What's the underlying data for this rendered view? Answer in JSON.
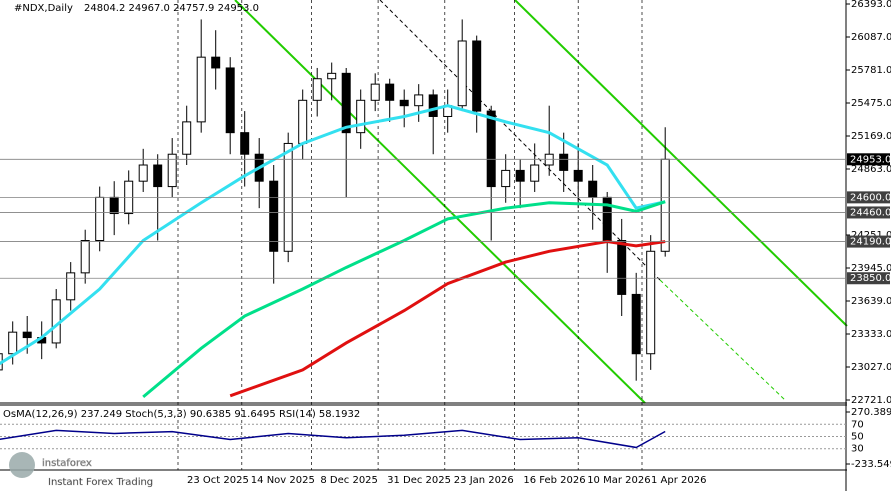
{
  "header": {
    "symbol": "#NDX,Daily",
    "ohlc": "24804.2 24967.0 24757.9 24953.0"
  },
  "watermark": {
    "brand": "instaforex",
    "tagline": "Instant Forex Trading"
  },
  "chart_data": {
    "type": "candlestick",
    "x": [
      "2025-08-22",
      "2025-08-27",
      "2025-09-01",
      "2025-09-06",
      "2025-09-11",
      "2025-09-16",
      "2025-09-21",
      "2025-09-26",
      "2025-10-01",
      "2025-10-06",
      "2025-10-11",
      "2025-10-16",
      "2025-10-21",
      "2025-10-26",
      "2025-10-31",
      "2025-11-05",
      "2025-11-10",
      "2025-11-15",
      "2025-11-20",
      "2025-11-25",
      "2025-11-30",
      "2025-12-05",
      "2025-12-10",
      "2025-12-15",
      "2025-12-20",
      "2025-12-25",
      "2025-12-30",
      "2026-01-04",
      "2026-01-09",
      "2026-01-14",
      "2026-01-19",
      "2026-01-24",
      "2026-01-29",
      "2026-02-03",
      "2026-02-08",
      "2026-02-13",
      "2026-02-18",
      "2026-02-23",
      "2026-02-28",
      "2026-03-05",
      "2026-03-10",
      "2026-03-15",
      "2026-03-20",
      "2026-03-25",
      "2026-03-30",
      "2026-04-04",
      "2026-04-09"
    ],
    "ohlc": [
      [
        23000,
        23250,
        22900,
        23150
      ],
      [
        23150,
        23450,
        23050,
        23350
      ],
      [
        23350,
        23500,
        23150,
        23300
      ],
      [
        23300,
        23450,
        23100,
        23250
      ],
      [
        23250,
        23750,
        23200,
        23650
      ],
      [
        23650,
        24000,
        23550,
        23900
      ],
      [
        23900,
        24300,
        23800,
        24200
      ],
      [
        24200,
        24700,
        24100,
        24600
      ],
      [
        24600,
        24750,
        24250,
        24450
      ],
      [
        24450,
        24850,
        24350,
        24750
      ],
      [
        24750,
        25050,
        24650,
        24900
      ],
      [
        24900,
        25000,
        24200,
        24700
      ],
      [
        24700,
        25150,
        24600,
        25000
      ],
      [
        25000,
        25450,
        24900,
        25300
      ],
      [
        25300,
        26250,
        25200,
        25900
      ],
      [
        25900,
        26150,
        25600,
        25800
      ],
      [
        25800,
        25900,
        25000,
        25200
      ],
      [
        25200,
        25400,
        24700,
        25000
      ],
      [
        25000,
        25150,
        24500,
        24750
      ],
      [
        24750,
        24900,
        23800,
        24100
      ],
      [
        24100,
        25200,
        24000,
        25100
      ],
      [
        25100,
        25600,
        24950,
        25500
      ],
      [
        25500,
        25800,
        25350,
        25700
      ],
      [
        25700,
        25850,
        25500,
        25750
      ],
      [
        25750,
        25800,
        24600,
        25200
      ],
      [
        25200,
        25600,
        25050,
        25500
      ],
      [
        25500,
        25750,
        25400,
        25650
      ],
      [
        25650,
        25700,
        25300,
        25500
      ],
      [
        25500,
        25600,
        25250,
        25450
      ],
      [
        25450,
        25650,
        25300,
        25550
      ],
      [
        25550,
        25600,
        25000,
        25350
      ],
      [
        25350,
        25600,
        25200,
        25450
      ],
      [
        25450,
        26250,
        25400,
        26050
      ],
      [
        26050,
        26100,
        25200,
        25400
      ],
      [
        25400,
        25450,
        24200,
        24700
      ],
      [
        24700,
        25000,
        24550,
        24850
      ],
      [
        24850,
        24950,
        24500,
        24750
      ],
      [
        24750,
        25100,
        24650,
        24900
      ],
      [
        24900,
        25450,
        24800,
        25000
      ],
      [
        25000,
        25200,
        24650,
        24850
      ],
      [
        24850,
        25100,
        24500,
        24750
      ],
      [
        24750,
        24900,
        24300,
        24600
      ],
      [
        24600,
        24650,
        23900,
        24200
      ],
      [
        24200,
        24400,
        23500,
        23700
      ],
      [
        23700,
        23900,
        22900,
        23150
      ],
      [
        23150,
        24250,
        23000,
        24100
      ],
      [
        24100,
        25250,
        24050,
        24953
      ]
    ],
    "ylim": [
      22721,
      26393
    ],
    "yticks": [
      {
        "value": 26393,
        "label": "26393.0"
      },
      {
        "value": 26087,
        "label": "26087.0"
      },
      {
        "value": 25781,
        "label": "25781.0"
      },
      {
        "value": 25475,
        "label": "25475.0"
      },
      {
        "value": 25169,
        "label": "25169.0"
      },
      {
        "value": 24863,
        "label": "24863.0"
      },
      {
        "value": 24251,
        "label": "24251.0"
      },
      {
        "value": 23945,
        "label": "23945.0"
      },
      {
        "value": 23639,
        "label": "23639.0"
      },
      {
        "value": 23333,
        "label": "23333.0"
      },
      {
        "value": 23027,
        "label": "23027.0"
      },
      {
        "value": 22721,
        "label": "22721.0"
      }
    ],
    "xticks": [
      {
        "value": "2025-10-23",
        "label": "23 Oct 2025"
      },
      {
        "value": "2025-11-14",
        "label": "14 Nov 2025"
      },
      {
        "value": "2025-12-08",
        "label": "8 Dec 2025"
      },
      {
        "value": "2025-12-31",
        "label": "31 Dec 2025"
      },
      {
        "value": "2026-01-23",
        "label": "23 Jan 2026"
      },
      {
        "value": "2026-02-16",
        "label": "16 Feb 2026"
      },
      {
        "value": "2026-03-10",
        "label": "10 Mar 2026"
      },
      {
        "value": "2026-04-01",
        "label": "1 Apr 2026"
      }
    ],
    "moving_averages": [
      {
        "color": "#33e0f0",
        "x": [
          "2025-08-22",
          "2025-09-06",
          "2025-09-26",
          "2025-10-11",
          "2025-10-31",
          "2025-11-15",
          "2025-12-05",
          "2025-12-20",
          "2026-01-09",
          "2026-01-24",
          "2026-02-13",
          "2026-02-28",
          "2026-03-20",
          "2026-03-30",
          "2026-04-09"
        ],
        "values": [
          23050,
          23300,
          23750,
          24200,
          24550,
          24800,
          25100,
          25250,
          25350,
          25450,
          25300,
          25200,
          24900,
          24500,
          24560
        ]
      },
      {
        "color": "#00e08a",
        "x": [
          "2025-10-11",
          "2025-10-31",
          "2025-11-15",
          "2025-12-05",
          "2025-12-20",
          "2026-01-09",
          "2026-01-24",
          "2026-02-13",
          "2026-02-28",
          "2026-03-20",
          "2026-03-30",
          "2026-04-09"
        ],
        "values": [
          22750,
          23200,
          23500,
          23750,
          23950,
          24200,
          24400,
          24500,
          24550,
          24530,
          24470,
          24560
        ]
      },
      {
        "color": "#e01010",
        "x": [
          "2025-11-10",
          "2025-12-05",
          "2025-12-20",
          "2026-01-09",
          "2026-01-24",
          "2026-02-13",
          "2026-02-28",
          "2026-03-20",
          "2026-03-30",
          "2026-04-09"
        ],
        "values": [
          22760,
          23000,
          23250,
          23550,
          23800,
          24000,
          24100,
          24190,
          24150,
          24190
        ]
      }
    ],
    "levels": [
      {
        "value": 24953,
        "label": "24953.0",
        "color": "#000000"
      },
      {
        "value": 24600,
        "label": "24600.0",
        "color": "#404040"
      },
      {
        "value": 24460,
        "label": "24460.0",
        "color": "#404040"
      },
      {
        "value": 24190,
        "label": "24190.0",
        "color": "#404040"
      },
      {
        "value": 23850,
        "label": "23850.0",
        "color": "#404040"
      }
    ],
    "oscillator": {
      "title": "OsMA(12,26,9) 237.249  Stoch(5,3,3) 90.6385 91.6495  RSI(14) 58.1932",
      "ylim": [
        0,
        100
      ],
      "yticks": [
        70,
        50,
        30
      ],
      "y2lim": [
        -233.549,
        270.389
      ],
      "y2ticks": [
        {
          "value": 270.389,
          "label": "270.389"
        },
        {
          "value": -233.549,
          "label": "-233.549"
        }
      ],
      "series": [
        {
          "name": "RSI(14)",
          "color": "#00008b",
          "x": [
            "2025-08-22",
            "2025-09-11",
            "2025-10-01",
            "2025-10-21",
            "2025-11-10",
            "2025-11-30",
            "2025-12-20",
            "2026-01-09",
            "2026-01-29",
            "2026-02-18",
            "2026-03-10",
            "2026-03-30",
            "2026-04-09"
          ],
          "values": [
            45,
            60,
            55,
            58,
            45,
            55,
            48,
            52,
            60,
            45,
            48,
            32,
            58.1932
          ]
        }
      ]
    }
  }
}
